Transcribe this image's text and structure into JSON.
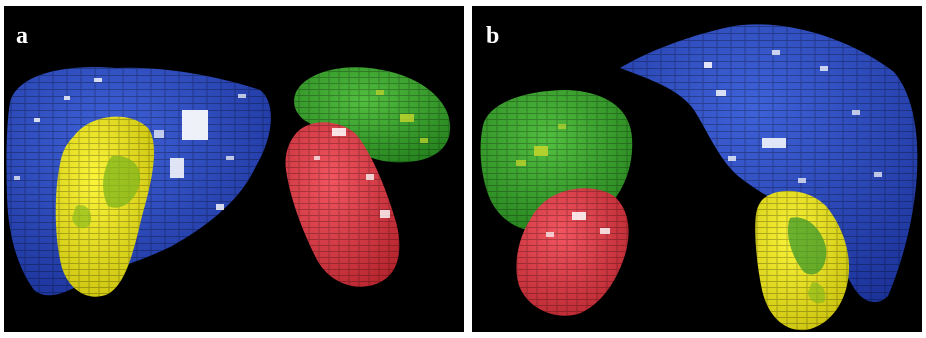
{
  "figure": {
    "background_color": "#000000",
    "panels": [
      {
        "label": "a",
        "organs": [
          {
            "icon": "liver-render-icon",
            "color": "#2d4fc4"
          },
          {
            "icon": "gallbladder-render-icon",
            "color": "#f2ea1a"
          },
          {
            "icon": "stomach-render-icon",
            "color": "#3daa2f"
          },
          {
            "icon": "kidney-render-icon",
            "color": "#e83c45"
          }
        ]
      },
      {
        "label": "b",
        "organs": [
          {
            "icon": "stomach-render-icon",
            "color": "#3daa2f"
          },
          {
            "icon": "kidney-render-icon",
            "color": "#e83c45"
          },
          {
            "icon": "liver-render-icon",
            "color": "#2d4fc4"
          },
          {
            "icon": "gallbladder-render-icon",
            "color": "#f2ea1a"
          }
        ]
      }
    ]
  }
}
